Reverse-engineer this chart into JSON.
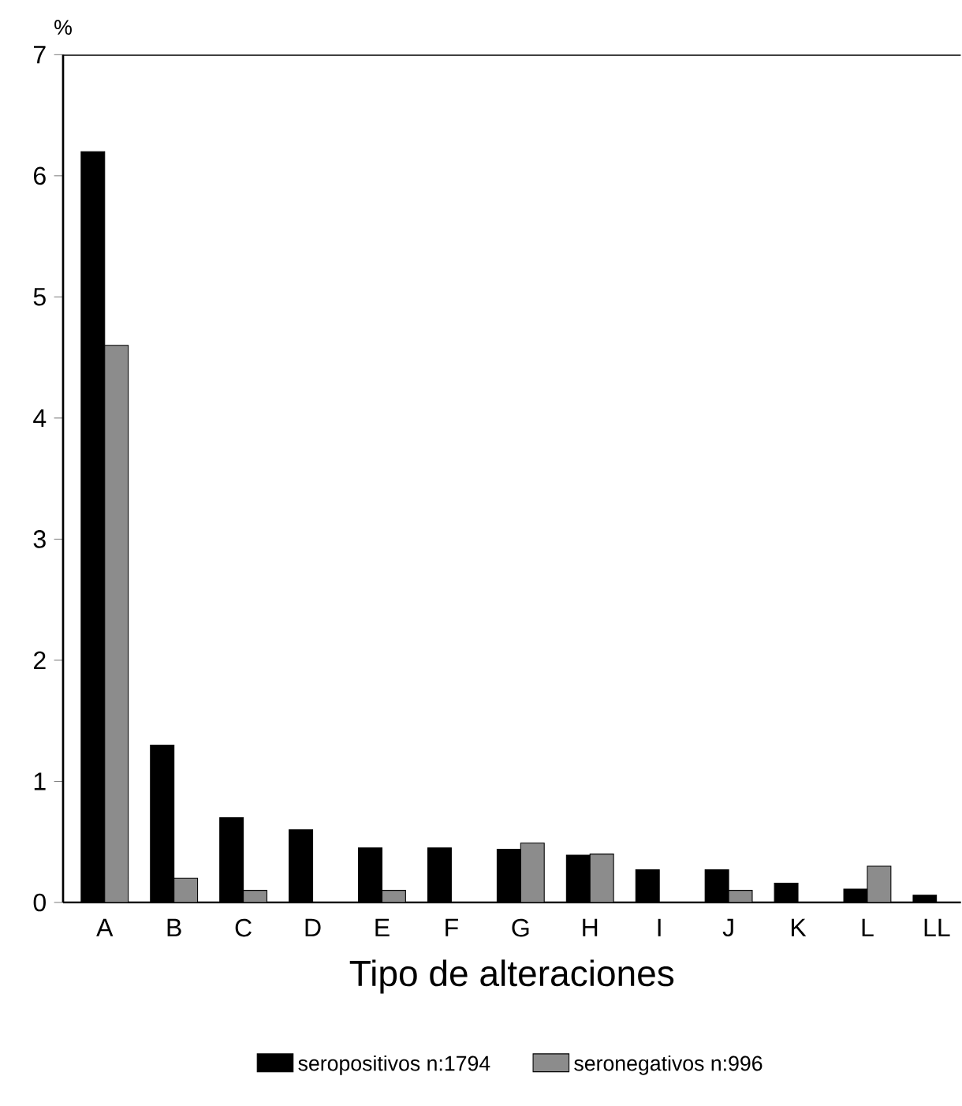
{
  "chart_data": {
    "type": "bar",
    "xlabel": "Tipo de alteraciones",
    "ylabel": "%",
    "categories": [
      "A",
      "B",
      "C",
      "D",
      "E",
      "F",
      "G",
      "H",
      "I",
      "J",
      "K",
      "L",
      "LL"
    ],
    "series": [
      {
        "name": "seropositivos n:1794",
        "color": "#000000",
        "values": [
          6.2,
          1.3,
          0.7,
          0.6,
          0.45,
          0.45,
          0.44,
          0.39,
          0.27,
          0.27,
          0.16,
          0.11,
          0.06
        ]
      },
      {
        "name": "seronegativos n:996",
        "color": "#8c8c8c",
        "values": [
          4.6,
          0.2,
          0.1,
          0,
          0.1,
          0,
          0.49,
          0.4,
          0,
          0.1,
          0,
          0.3,
          0
        ]
      }
    ],
    "ylim": [
      0,
      7
    ],
    "yticks": [
      0,
      1,
      2,
      3,
      4,
      5,
      6,
      7
    ],
    "grid": false,
    "legend": "bottom"
  }
}
